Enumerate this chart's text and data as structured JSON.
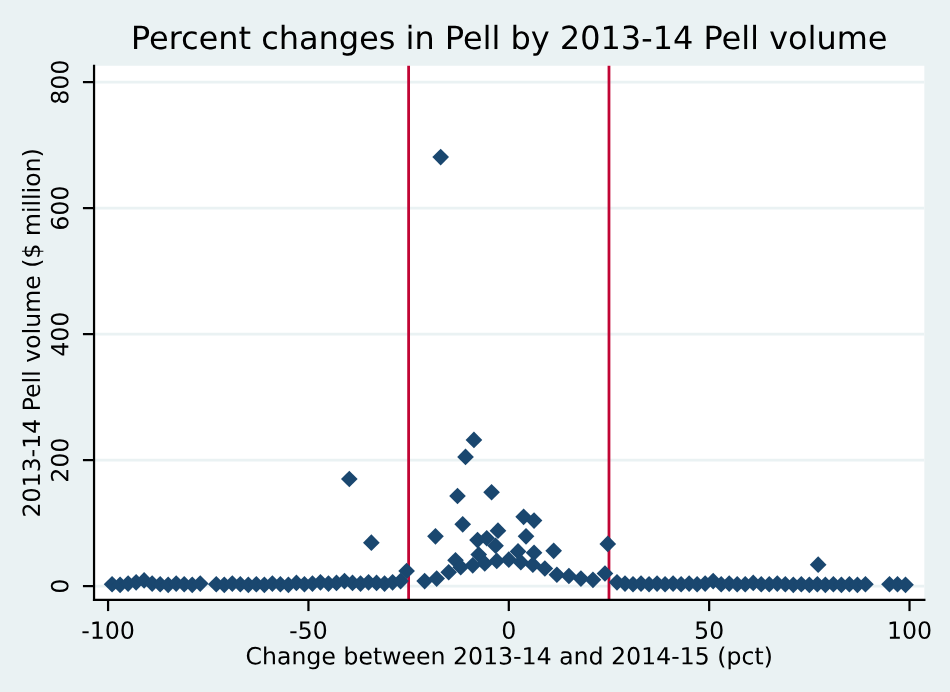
{
  "chart_data": {
    "type": "scatter",
    "title": "Percent changes in Pell by 2013-14 Pell volume",
    "xlabel": "Change between 2013-14 and 2014-15 (pct)",
    "ylabel": "2013-14 Pell volume ($ million)",
    "marker": "diamond",
    "grid": "y",
    "xlim": [
      -103.5,
      103.7
    ],
    "ylim": [
      -22,
      826
    ],
    "xticks": [
      -100,
      -50,
      0,
      50,
      100
    ],
    "yticks": [
      0,
      200,
      400,
      600,
      800
    ],
    "ref_lines": [
      {
        "axis": "x",
        "value": -25,
        "color": "#c10534"
      },
      {
        "axis": "x",
        "value": 25,
        "color": "#c10534"
      }
    ],
    "series": [
      {
        "color": "#1a476f",
        "x": [
          -17,
          -39.8,
          -34.3,
          -18.3,
          -8.7,
          -10.8,
          -12.8,
          -4.3,
          -11.5,
          -2.7,
          3.7,
          6.3,
          4.3,
          11.2,
          6.3,
          24.7,
          77.2,
          -7.8,
          -5.5,
          -3.3,
          -7.5,
          -13.3,
          2.3,
          -25.5
        ],
        "values": [
          681,
          170,
          69,
          79,
          232,
          205,
          143,
          149,
          98,
          88,
          110,
          104,
          79,
          56,
          53,
          67,
          34,
          73,
          76,
          64,
          50,
          41,
          55,
          24
        ]
      },
      {
        "color": "#1a476f",
        "x": [
          -99,
          -97,
          -95,
          -93,
          -91,
          -89,
          -87,
          -85,
          -83,
          -81,
          -79,
          -77,
          -73,
          -71,
          -69,
          -67,
          -65,
          -63,
          -61,
          -59,
          -57,
          -55,
          -53,
          -51,
          -49,
          -47,
          -45,
          -43,
          -41,
          -39,
          -37,
          -35,
          -33,
          -31,
          -29,
          -27
        ],
        "values": [
          3,
          2,
          4,
          6,
          9,
          4,
          3,
          2,
          4,
          3,
          2,
          4,
          3,
          2,
          4,
          3,
          2,
          3,
          2,
          4,
          3,
          2,
          5,
          3,
          4,
          6,
          4,
          5,
          8,
          5,
          4,
          6,
          5,
          4,
          6,
          8
        ]
      },
      {
        "color": "#1a476f",
        "x": [
          -21,
          -18,
          -15,
          -12,
          -9,
          -6,
          -3,
          0,
          3,
          6,
          9,
          12,
          15,
          18,
          21,
          24
        ],
        "values": [
          8,
          12,
          22,
          30,
          33,
          36,
          40,
          42,
          38,
          34,
          28,
          18,
          16,
          12,
          10,
          20
        ]
      },
      {
        "color": "#1a476f",
        "x": [
          27,
          29,
          31,
          33,
          35,
          37,
          39,
          41,
          43,
          45,
          47,
          49,
          51,
          53,
          55,
          57,
          59,
          61,
          63,
          65,
          67,
          69,
          71,
          73,
          75,
          77,
          79,
          81,
          83,
          85,
          87,
          89,
          95,
          97,
          99
        ],
        "values": [
          6,
          4,
          3,
          4,
          3,
          4,
          3,
          4,
          3,
          4,
          3,
          4,
          8,
          3,
          4,
          3,
          3,
          5,
          3,
          3,
          4,
          3,
          2,
          3,
          2,
          3,
          2,
          3,
          2,
          3,
          2,
          3,
          3,
          3,
          2
        ]
      }
    ]
  }
}
